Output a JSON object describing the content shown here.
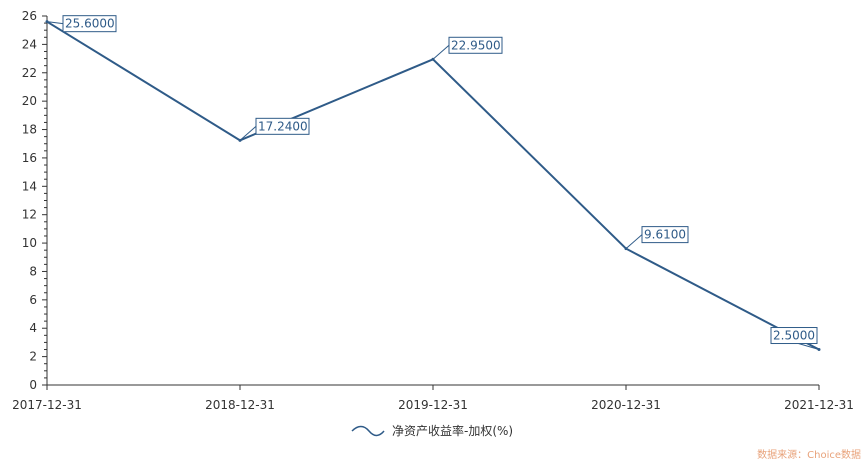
{
  "chart_data": {
    "type": "line",
    "title": "",
    "xlabel": "",
    "ylabel": "",
    "categories": [
      "2017-12-31",
      "2018-12-31",
      "2019-12-31",
      "2020-12-31",
      "2021-12-31"
    ],
    "series": [
      {
        "name": "净资产收益率-加权(%)",
        "values": [
          25.6,
          17.24,
          22.95,
          9.61,
          2.5
        ],
        "labels": [
          "25.6000",
          "17.2400",
          "22.9500",
          "9.6100",
          "2.5000"
        ],
        "color": "#2f5b88"
      }
    ],
    "ylim": [
      0,
      26
    ],
    "yticks": [
      0,
      2,
      4,
      6,
      8,
      10,
      12,
      14,
      16,
      18,
      20,
      22,
      24,
      26
    ],
    "grid": false,
    "legend": "bottom-center"
  },
  "source": "数据来源：Choice数据"
}
